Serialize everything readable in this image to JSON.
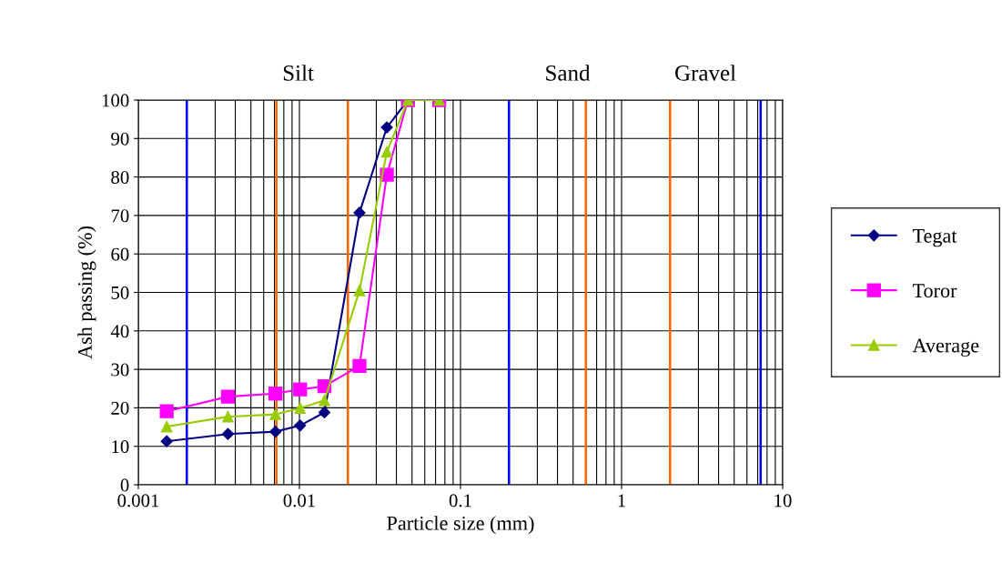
{
  "chart_data": {
    "type": "line",
    "xlabel": "Particle size (mm)",
    "ylabel": "Ash passing (%)",
    "log": "x",
    "grid": true,
    "legend": "right",
    "x": [
      0.0015,
      0.0036,
      0.0071,
      0.0101,
      0.0143,
      0.0236,
      0.0349,
      0.0472,
      0.0738
    ],
    "xlim": [
      0.001,
      10
    ],
    "xticks": [
      0.001,
      0.01,
      0.1,
      1,
      10
    ],
    "ylim": [
      0,
      100
    ],
    "yticks": [
      0,
      10,
      20,
      30,
      40,
      50,
      60,
      70,
      80,
      90,
      100
    ],
    "series": [
      {
        "name": "Tegat",
        "color": "#000080",
        "marker": "diamond",
        "values": [
          11.3,
          13.2,
          13.8,
          15.4,
          18.8,
          70.7,
          92.9,
          100,
          100
        ]
      },
      {
        "name": "Toror",
        "color": "#ff00ff",
        "marker": "square",
        "values": [
          19.1,
          22.9,
          23.7,
          24.8,
          25.6,
          30.9,
          80.6,
          100,
          100
        ]
      },
      {
        "name": "Average",
        "color": "#99cc00",
        "marker": "triangle",
        "values": [
          15.1,
          17.7,
          18.3,
          19.9,
          21.9,
          50.5,
          86.5,
          100,
          100
        ]
      }
    ],
    "ref_lines": [
      {
        "axis": "x",
        "value": 0.002,
        "color": "#0000ff"
      },
      {
        "axis": "x",
        "value": 0.0072,
        "color": "#ff6600"
      },
      {
        "axis": "x",
        "value": 0.02,
        "color": "#ff6600"
      },
      {
        "axis": "x",
        "value": 0.2,
        "color": "#0000ff"
      },
      {
        "axis": "x",
        "value": 0.6,
        "color": "#ff6600"
      },
      {
        "axis": "x",
        "value": 2,
        "color": "#ff6600"
      },
      {
        "axis": "x",
        "value": 7.3,
        "color": "#0000ff"
      }
    ],
    "annotations": [
      "Silt",
      "Sand",
      "Gravel"
    ]
  }
}
